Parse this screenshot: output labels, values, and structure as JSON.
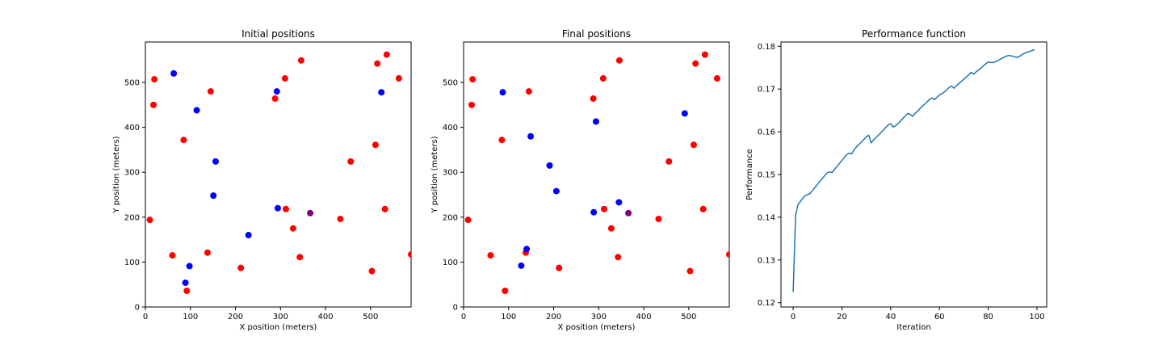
{
  "chart_data": [
    {
      "type": "scatter",
      "title": "Initial positions",
      "xlabel": "X position (meters)",
      "ylabel": "Y position (meters)",
      "xlim": [
        0,
        590
      ],
      "ylim": [
        0,
        590
      ],
      "xticks": [
        0,
        100,
        200,
        300,
        400,
        500
      ],
      "yticks": [
        0,
        100,
        200,
        300,
        400,
        500
      ],
      "grid": false,
      "series": [
        {
          "color": "#ff0000",
          "points": [
            [
              20,
              507
            ],
            [
              18,
              450
            ],
            [
              10,
              194
            ],
            [
              60,
              115
            ],
            [
              85,
              372
            ],
            [
              92,
              36
            ],
            [
              138,
              121
            ],
            [
              145,
              480
            ],
            [
              212,
              87
            ],
            [
              288,
              464
            ],
            [
              310,
              509
            ],
            [
              312,
              218
            ],
            [
              328,
              175
            ],
            [
              343,
              111
            ],
            [
              346,
              549
            ],
            [
              433,
              196
            ],
            [
              456,
              324
            ],
            [
              503,
              80
            ],
            [
              511,
              361
            ],
            [
              515,
              542
            ],
            [
              532,
              218
            ],
            [
              536,
              562
            ],
            [
              563,
              509
            ],
            [
              590,
              117
            ]
          ]
        },
        {
          "color": "#0000ff",
          "points": [
            [
              63,
              520
            ],
            [
              89,
              54
            ],
            [
              98,
              91
            ],
            [
              114,
              438
            ],
            [
              151,
              248
            ],
            [
              156,
              324
            ],
            [
              229,
              160
            ],
            [
              292,
              480
            ],
            [
              294,
              220
            ],
            [
              524,
              478
            ]
          ]
        },
        {
          "color": "#800080",
          "points": [
            [
              366,
              209
            ]
          ]
        }
      ]
    },
    {
      "type": "scatter",
      "title": "Final positions",
      "xlabel": "X position (meters)",
      "ylabel": "Y position (meters)",
      "xlim": [
        0,
        590
      ],
      "ylim": [
        0,
        590
      ],
      "xticks": [
        0,
        100,
        200,
        300,
        400,
        500
      ],
      "yticks": [
        0,
        100,
        200,
        300,
        400,
        500
      ],
      "grid": false,
      "series": [
        {
          "color": "#ff0000",
          "points": [
            [
              20,
              507
            ],
            [
              18,
              450
            ],
            [
              10,
              194
            ],
            [
              60,
              115
            ],
            [
              85,
              372
            ],
            [
              92,
              36
            ],
            [
              138,
              121
            ],
            [
              145,
              480
            ],
            [
              212,
              87
            ],
            [
              288,
              464
            ],
            [
              310,
              509
            ],
            [
              312,
              218
            ],
            [
              328,
              175
            ],
            [
              343,
              111
            ],
            [
              346,
              549
            ],
            [
              433,
              196
            ],
            [
              456,
              324
            ],
            [
              503,
              80
            ],
            [
              511,
              361
            ],
            [
              515,
              542
            ],
            [
              532,
              218
            ],
            [
              536,
              562
            ],
            [
              563,
              509
            ],
            [
              590,
              117
            ]
          ]
        },
        {
          "color": "#0000ff",
          "points": [
            [
              87,
              478
            ],
            [
              128,
              92
            ],
            [
              140,
              129
            ],
            [
              149,
              380
            ],
            [
              191,
              315
            ],
            [
              206,
              258
            ],
            [
              289,
              211
            ],
            [
              294,
              413
            ],
            [
              345,
              233
            ],
            [
              491,
              431
            ]
          ]
        },
        {
          "color": "#800080",
          "points": [
            [
              366,
              209
            ]
          ]
        }
      ]
    },
    {
      "type": "line",
      "title": "Performance function",
      "xlabel": "Iteration",
      "ylabel": "Performance",
      "xlim": [
        -5,
        104
      ],
      "ylim": [
        0.119,
        0.181
      ],
      "xticks": [
        0,
        20,
        40,
        60,
        80,
        100
      ],
      "yticks": [
        0.12,
        0.13,
        0.14,
        0.15,
        0.16,
        0.17,
        0.18
      ],
      "grid": false,
      "series": [
        {
          "color": "#1f77b4",
          "x": [
            0,
            1,
            2,
            3,
            4,
            5,
            6,
            7,
            8,
            9,
            10,
            11,
            12,
            13,
            14,
            15,
            16,
            17,
            18,
            19,
            20,
            21,
            22,
            23,
            24,
            25,
            26,
            27,
            28,
            29,
            30,
            31,
            32,
            33,
            34,
            35,
            36,
            37,
            38,
            39,
            40,
            41,
            42,
            43,
            44,
            45,
            46,
            47,
            48,
            49,
            50,
            51,
            52,
            53,
            54,
            55,
            56,
            57,
            58,
            59,
            60,
            61,
            62,
            63,
            64,
            65,
            66,
            67,
            68,
            69,
            70,
            71,
            72,
            73,
            74,
            75,
            76,
            77,
            78,
            79,
            80,
            81,
            82,
            83,
            84,
            85,
            86,
            87,
            88,
            89,
            90,
            91,
            92,
            93,
            94,
            95,
            96,
            97,
            98,
            99
          ],
          "y": [
            0.1225,
            0.1405,
            0.143,
            0.1437,
            0.1445,
            0.1451,
            0.1453,
            0.1456,
            0.1463,
            0.147,
            0.1477,
            0.1484,
            0.1491,
            0.1498,
            0.1504,
            0.1506,
            0.1505,
            0.1512,
            0.1519,
            0.1526,
            0.1533,
            0.154,
            0.1547,
            0.155,
            0.1548,
            0.1558,
            0.1565,
            0.157,
            0.1576,
            0.1582,
            0.1588,
            0.1592,
            0.1574,
            0.1581,
            0.1587,
            0.1592,
            0.1598,
            0.1604,
            0.161,
            0.1616,
            0.1619,
            0.1611,
            0.1614,
            0.1619,
            0.1625,
            0.1631,
            0.1637,
            0.1643,
            0.1641,
            0.1636,
            0.1643,
            0.1648,
            0.1654,
            0.166,
            0.1665,
            0.167,
            0.1676,
            0.1679,
            0.1675,
            0.1681,
            0.1686,
            0.1689,
            0.1693,
            0.1698,
            0.1704,
            0.1707,
            0.1702,
            0.1708,
            0.1713,
            0.1718,
            0.1723,
            0.1728,
            0.1733,
            0.1739,
            0.1735,
            0.174,
            0.1744,
            0.1749,
            0.1754,
            0.1759,
            0.1763,
            0.1762,
            0.1762,
            0.1764,
            0.1767,
            0.177,
            0.1773,
            0.1776,
            0.1778,
            0.1778,
            0.1777,
            0.1775,
            0.1774,
            0.1777,
            0.1781,
            0.1784,
            0.1786,
            0.1788,
            0.179,
            0.1792
          ]
        }
      ]
    }
  ]
}
